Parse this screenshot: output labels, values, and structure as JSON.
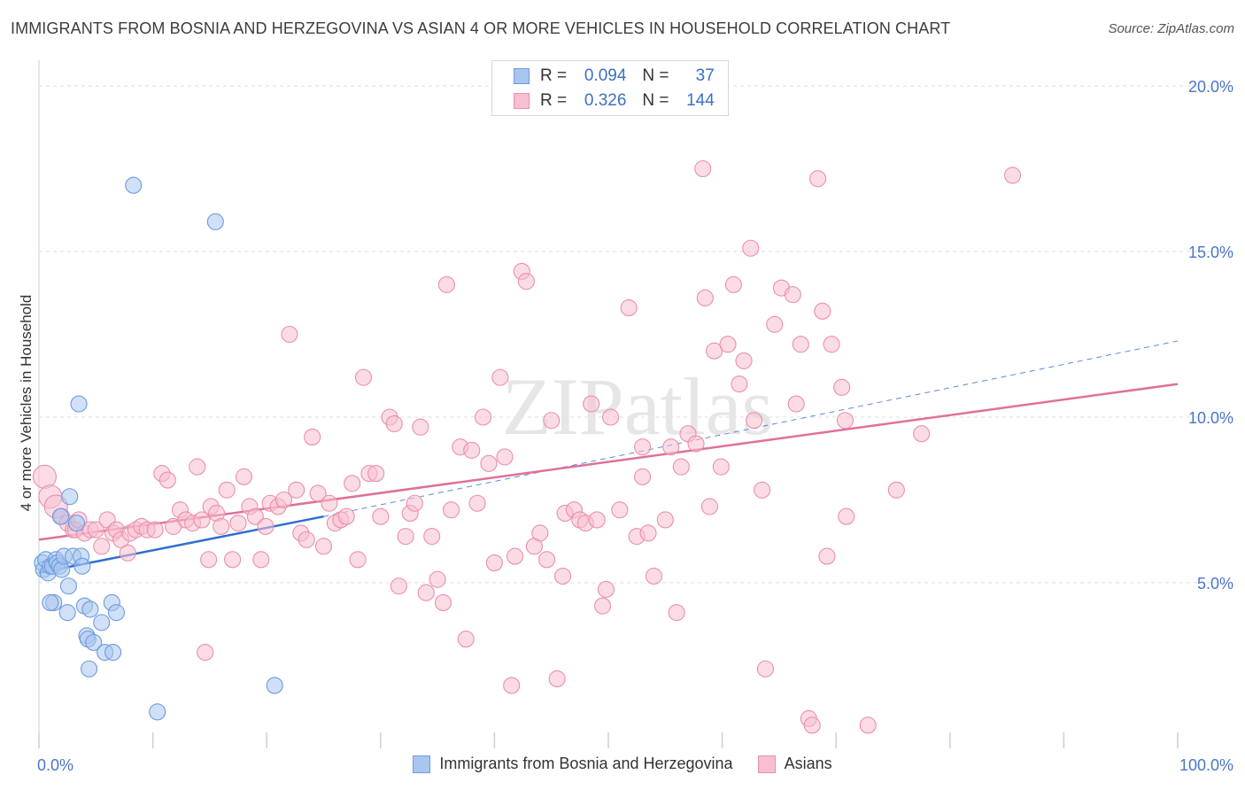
{
  "header": {
    "title": "IMMIGRANTS FROM BOSNIA AND HERZEGOVINA VS ASIAN 4 OR MORE VEHICLES IN HOUSEHOLD CORRELATION CHART",
    "source": "Source: ZipAtlas.com"
  },
  "watermark": "ZIPatlas",
  "legend": {
    "rows": [
      {
        "r_label": "R =",
        "r_value": "0.094",
        "n_label": "N =",
        "n_value": "37",
        "color": "#a9c6ee",
        "border": "#6d9be0"
      },
      {
        "r_label": "R =",
        "r_value": "0.326",
        "n_label": "N =",
        "n_value": "144",
        "color": "#f7bfd0",
        "border": "#ea8fab"
      }
    ]
  },
  "bottom_legend": [
    "Immigrants from Bosnia and Herzegovina",
    "Asians"
  ],
  "chart_data": {
    "type": "scatter",
    "xlabel": "",
    "ylabel": "4 or more Vehicles in Household",
    "xlim": [
      0,
      100
    ],
    "ylim": [
      0,
      20
    ],
    "x_tick_labels": [
      "0.0%",
      "100.0%"
    ],
    "y_tick_labels": [
      "5.0%",
      "10.0%",
      "15.0%",
      "20.0%"
    ],
    "y_ticks": [
      5,
      10,
      15,
      20
    ],
    "series": [
      {
        "name": "Immigrants from Bosnia and Herzegovina",
        "color": "#a9c6ee",
        "stroke": "#6d9be0",
        "trend": {
          "x0": 0,
          "y0": 5.3,
          "x1": 25,
          "y1": 7.0,
          "color": "#2f6ed0",
          "dash_to": {
            "x": 100,
            "y": 12.3
          }
        },
        "points": [
          [
            0.3,
            5.6
          ],
          [
            0.4,
            5.4
          ],
          [
            0.6,
            5.7
          ],
          [
            0.8,
            5.3
          ],
          [
            1.0,
            5.5
          ],
          [
            1.2,
            5.5
          ],
          [
            1.3,
            4.4
          ],
          [
            1.5,
            5.7
          ],
          [
            1.6,
            5.6
          ],
          [
            1.8,
            5.5
          ],
          [
            2.0,
            5.4
          ],
          [
            2.2,
            5.8
          ],
          [
            2.5,
            4.1
          ],
          [
            2.6,
            4.9
          ],
          [
            2.7,
            7.6
          ],
          [
            3.0,
            5.8
          ],
          [
            3.3,
            6.8
          ],
          [
            3.5,
            10.4
          ],
          [
            3.7,
            5.8
          ],
          [
            3.8,
            5.5
          ],
          [
            4.0,
            4.3
          ],
          [
            4.2,
            3.4
          ],
          [
            4.3,
            3.3
          ],
          [
            4.4,
            2.4
          ],
          [
            4.5,
            4.2
          ],
          [
            4.8,
            3.2
          ],
          [
            5.5,
            3.8
          ],
          [
            5.8,
            2.9
          ],
          [
            6.4,
            4.4
          ],
          [
            6.5,
            2.9
          ],
          [
            6.8,
            4.1
          ],
          [
            8.3,
            17.0
          ],
          [
            10.4,
            1.1
          ],
          [
            15.5,
            15.9
          ],
          [
            20.7,
            1.9
          ],
          [
            1.9,
            7.0
          ],
          [
            1.0,
            4.4
          ]
        ]
      },
      {
        "name": "Asians",
        "color": "#f7bfd0",
        "stroke": "#ea8fab",
        "trend": {
          "x0": 0,
          "y0": 6.3,
          "x1": 100,
          "y1": 11.0,
          "color": "#e0709a"
        },
        "points": [
          [
            0.5,
            8.2
          ],
          [
            1.0,
            7.6
          ],
          [
            1.5,
            7.3
          ],
          [
            2.0,
            7.0
          ],
          [
            2.5,
            6.8
          ],
          [
            3.0,
            6.6
          ],
          [
            3.2,
            6.6
          ],
          [
            3.5,
            6.9
          ],
          [
            4.0,
            6.5
          ],
          [
            4.5,
            6.6
          ],
          [
            5.0,
            6.6
          ],
          [
            5.5,
            6.1
          ],
          [
            6.0,
            6.9
          ],
          [
            6.5,
            6.5
          ],
          [
            6.8,
            6.6
          ],
          [
            7.2,
            6.3
          ],
          [
            7.8,
            5.9
          ],
          [
            8.0,
            6.5
          ],
          [
            8.5,
            6.6
          ],
          [
            9.0,
            6.7
          ],
          [
            9.5,
            6.6
          ],
          [
            10.2,
            6.6
          ],
          [
            10.8,
            8.3
          ],
          [
            11.3,
            8.1
          ],
          [
            11.8,
            6.7
          ],
          [
            12.4,
            7.2
          ],
          [
            12.9,
            6.9
          ],
          [
            13.5,
            6.8
          ],
          [
            13.9,
            8.5
          ],
          [
            14.3,
            6.9
          ],
          [
            14.6,
            2.9
          ],
          [
            14.9,
            5.7
          ],
          [
            15.1,
            7.3
          ],
          [
            15.6,
            7.1
          ],
          [
            16.0,
            6.7
          ],
          [
            16.5,
            7.8
          ],
          [
            17.0,
            5.7
          ],
          [
            17.5,
            6.8
          ],
          [
            18.0,
            8.2
          ],
          [
            18.5,
            7.3
          ],
          [
            19.0,
            7.0
          ],
          [
            19.5,
            5.7
          ],
          [
            19.9,
            6.7
          ],
          [
            20.3,
            7.4
          ],
          [
            21.0,
            7.3
          ],
          [
            21.5,
            7.5
          ],
          [
            22.0,
            12.5
          ],
          [
            22.6,
            7.8
          ],
          [
            23.0,
            6.5
          ],
          [
            23.5,
            6.3
          ],
          [
            24.0,
            9.4
          ],
          [
            24.5,
            7.7
          ],
          [
            25.0,
            6.1
          ],
          [
            25.5,
            7.4
          ],
          [
            26.0,
            6.8
          ],
          [
            26.5,
            6.9
          ],
          [
            27.0,
            7.0
          ],
          [
            27.5,
            8.0
          ],
          [
            28.0,
            5.7
          ],
          [
            28.5,
            11.2
          ],
          [
            29.0,
            8.3
          ],
          [
            29.6,
            8.3
          ],
          [
            30.0,
            7.0
          ],
          [
            30.8,
            10.0
          ],
          [
            31.2,
            9.8
          ],
          [
            31.6,
            4.9
          ],
          [
            32.2,
            6.4
          ],
          [
            32.6,
            7.1
          ],
          [
            33.0,
            7.4
          ],
          [
            33.5,
            9.7
          ],
          [
            34.0,
            4.7
          ],
          [
            34.5,
            6.4
          ],
          [
            35.0,
            5.1
          ],
          [
            35.5,
            4.4
          ],
          [
            35.8,
            14.0
          ],
          [
            36.2,
            7.2
          ],
          [
            37.0,
            9.1
          ],
          [
            37.5,
            3.3
          ],
          [
            38.0,
            9.0
          ],
          [
            38.5,
            7.4
          ],
          [
            39.0,
            10.0
          ],
          [
            39.5,
            8.6
          ],
          [
            40.0,
            5.6
          ],
          [
            40.5,
            11.2
          ],
          [
            40.9,
            8.8
          ],
          [
            41.5,
            1.9
          ],
          [
            41.8,
            5.8
          ],
          [
            42.4,
            14.4
          ],
          [
            42.8,
            14.1
          ],
          [
            43.5,
            6.1
          ],
          [
            44.0,
            6.5
          ],
          [
            44.6,
            5.7
          ],
          [
            45.0,
            9.9
          ],
          [
            45.5,
            2.1
          ],
          [
            46.0,
            5.2
          ],
          [
            46.2,
            7.1
          ],
          [
            47.0,
            7.2
          ],
          [
            47.5,
            6.9
          ],
          [
            48.0,
            6.8
          ],
          [
            48.5,
            10.4
          ],
          [
            49.0,
            6.9
          ],
          [
            49.5,
            4.3
          ],
          [
            49.8,
            4.8
          ],
          [
            50.2,
            10.0
          ],
          [
            51.0,
            7.2
          ],
          [
            51.8,
            13.3
          ],
          [
            52.5,
            6.4
          ],
          [
            53.0,
            8.2
          ],
          [
            53.5,
            6.5
          ],
          [
            54.0,
            5.2
          ],
          [
            55.0,
            6.9
          ],
          [
            55.5,
            9.1
          ],
          [
            56.0,
            4.1
          ],
          [
            56.4,
            8.5
          ],
          [
            57.0,
            9.5
          ],
          [
            57.7,
            9.2
          ],
          [
            58.3,
            17.5
          ],
          [
            58.5,
            13.6
          ],
          [
            58.9,
            7.3
          ],
          [
            59.3,
            12.0
          ],
          [
            59.9,
            8.5
          ],
          [
            60.5,
            12.2
          ],
          [
            61.0,
            14.0
          ],
          [
            61.5,
            11.0
          ],
          [
            61.9,
            11.7
          ],
          [
            62.5,
            15.1
          ],
          [
            62.8,
            9.9
          ],
          [
            63.5,
            7.8
          ],
          [
            63.8,
            2.4
          ],
          [
            64.6,
            12.8
          ],
          [
            65.2,
            13.9
          ],
          [
            66.2,
            13.7
          ],
          [
            66.5,
            10.4
          ],
          [
            66.9,
            12.2
          ],
          [
            67.6,
            0.9
          ],
          [
            67.9,
            0.7
          ],
          [
            68.4,
            17.2
          ],
          [
            68.8,
            13.2
          ],
          [
            69.2,
            5.8
          ],
          [
            69.6,
            12.2
          ],
          [
            70.5,
            10.9
          ],
          [
            70.8,
            9.9
          ],
          [
            70.9,
            7.0
          ],
          [
            72.8,
            0.7
          ],
          [
            75.3,
            7.8
          ],
          [
            77.5,
            9.5
          ],
          [
            85.5,
            17.3
          ],
          [
            53.0,
            9.1
          ]
        ]
      }
    ]
  }
}
